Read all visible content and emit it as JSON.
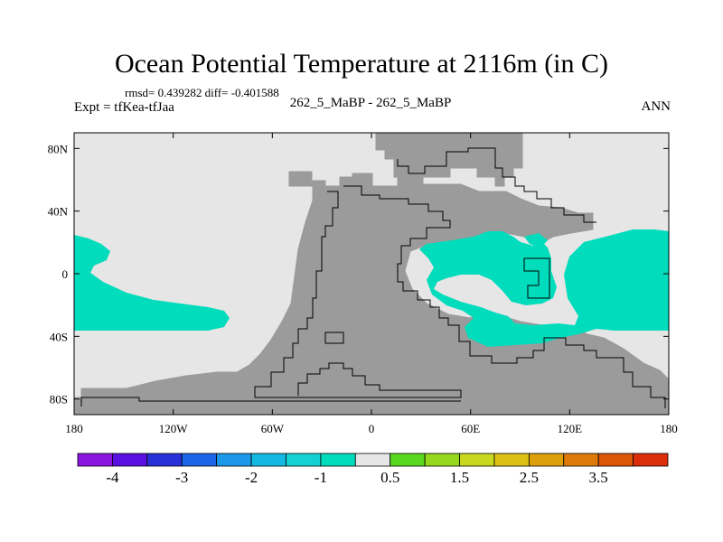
{
  "header": {
    "title": "Ocean Potential Temperature at 2116m (in C)",
    "stats": "rmsd= 0.439282 diff= -0.401588",
    "expt": "Expt = tfKea-tfJaa",
    "cases": "262_5_MaBP - 262_5_MaBP",
    "season": "ANN"
  },
  "map": {
    "lon_range": [
      -180,
      180
    ],
    "lat_range": [
      -90,
      90
    ],
    "x_ticks": [
      {
        "lon": -180,
        "label": "180"
      },
      {
        "lon": -120,
        "label": "120W"
      },
      {
        "lon": -60,
        "label": "60W"
      },
      {
        "lon": 0,
        "label": "0"
      },
      {
        "lon": 60,
        "label": "60E"
      },
      {
        "lon": 120,
        "label": "120E"
      },
      {
        "lon": 180,
        "label": "180"
      }
    ],
    "y_ticks": [
      {
        "lat": 80,
        "label": "80N"
      },
      {
        "lat": 40,
        "label": "40N"
      },
      {
        "lat": 0,
        "label": "0"
      },
      {
        "lat": -40,
        "label": "40S"
      },
      {
        "lat": -80,
        "label": "80S"
      }
    ],
    "colors": {
      "ocean_near_zero": "#e6e6e6",
      "land": "#9b9b9b",
      "cool_anomaly": "#00dcbc"
    }
  },
  "colorbar": {
    "colors": [
      "#8a14e0",
      "#5a10e0",
      "#2830d8",
      "#1c64e8",
      "#1c98e8",
      "#14b8e0",
      "#14d2d2",
      "#00dcbc",
      "#e6e6e6",
      "#5ad81e",
      "#96d81e",
      "#c8d81e",
      "#dcc014",
      "#dca00a",
      "#dc7a0a",
      "#dc560a",
      "#dc2e0a"
    ],
    "labels": [
      {
        "boundary": 1,
        "text": "-4"
      },
      {
        "boundary": 3,
        "text": "-3"
      },
      {
        "boundary": 5,
        "text": "-2"
      },
      {
        "boundary": 7,
        "text": "-1"
      },
      {
        "boundary": 9,
        "text": "0.5"
      },
      {
        "boundary": 11,
        "text": "1.5"
      },
      {
        "boundary": 13,
        "text": "2.5"
      },
      {
        "boundary": 15,
        "text": "3.5"
      }
    ]
  }
}
